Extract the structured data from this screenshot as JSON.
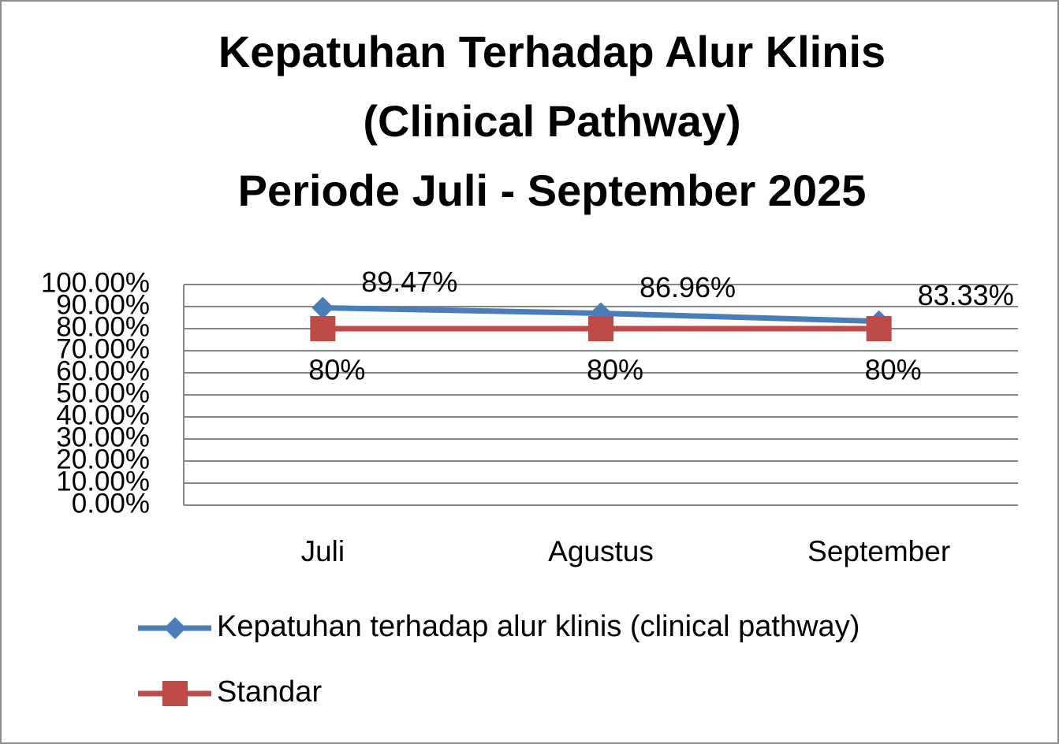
{
  "chart_data": {
    "type": "line",
    "title": [
      "Kepatuhan Terhadap Alur Klinis",
      "(Clinical Pathway)",
      "Periode Juli - September 2025"
    ],
    "categories": [
      "Juli",
      "Agustus",
      "September"
    ],
    "series": [
      {
        "name": "Kepatuhan terhadap alur klinis (clinical pathway)",
        "color": "#4a7ebb",
        "marker": "diamond",
        "values": [
          89.47,
          86.96,
          83.33
        ],
        "value_labels": [
          "89.47%",
          "86.96%",
          "83.33%"
        ]
      },
      {
        "name": "Standar",
        "color": "#be4b48",
        "marker": "square",
        "values": [
          80,
          80,
          80
        ],
        "value_labels": [
          "80%",
          "80%",
          "80%"
        ]
      }
    ],
    "ylim": [
      0,
      100
    ],
    "yticks": [
      {
        "value": 0,
        "label": "0.00%"
      },
      {
        "value": 10,
        "label": "10.00%"
      },
      {
        "value": 20,
        "label": "20.00%"
      },
      {
        "value": 30,
        "label": "30.00%"
      },
      {
        "value": 40,
        "label": "40.00%"
      },
      {
        "value": 50,
        "label": "50.00%"
      },
      {
        "value": 60,
        "label": "60.00%"
      },
      {
        "value": 70,
        "label": "70.00%"
      },
      {
        "value": 80,
        "label": "80.00%"
      },
      {
        "value": 90,
        "label": "90.00%"
      },
      {
        "value": 100,
        "label": "100.00%"
      }
    ],
    "grid": true,
    "legend": "bottom"
  }
}
